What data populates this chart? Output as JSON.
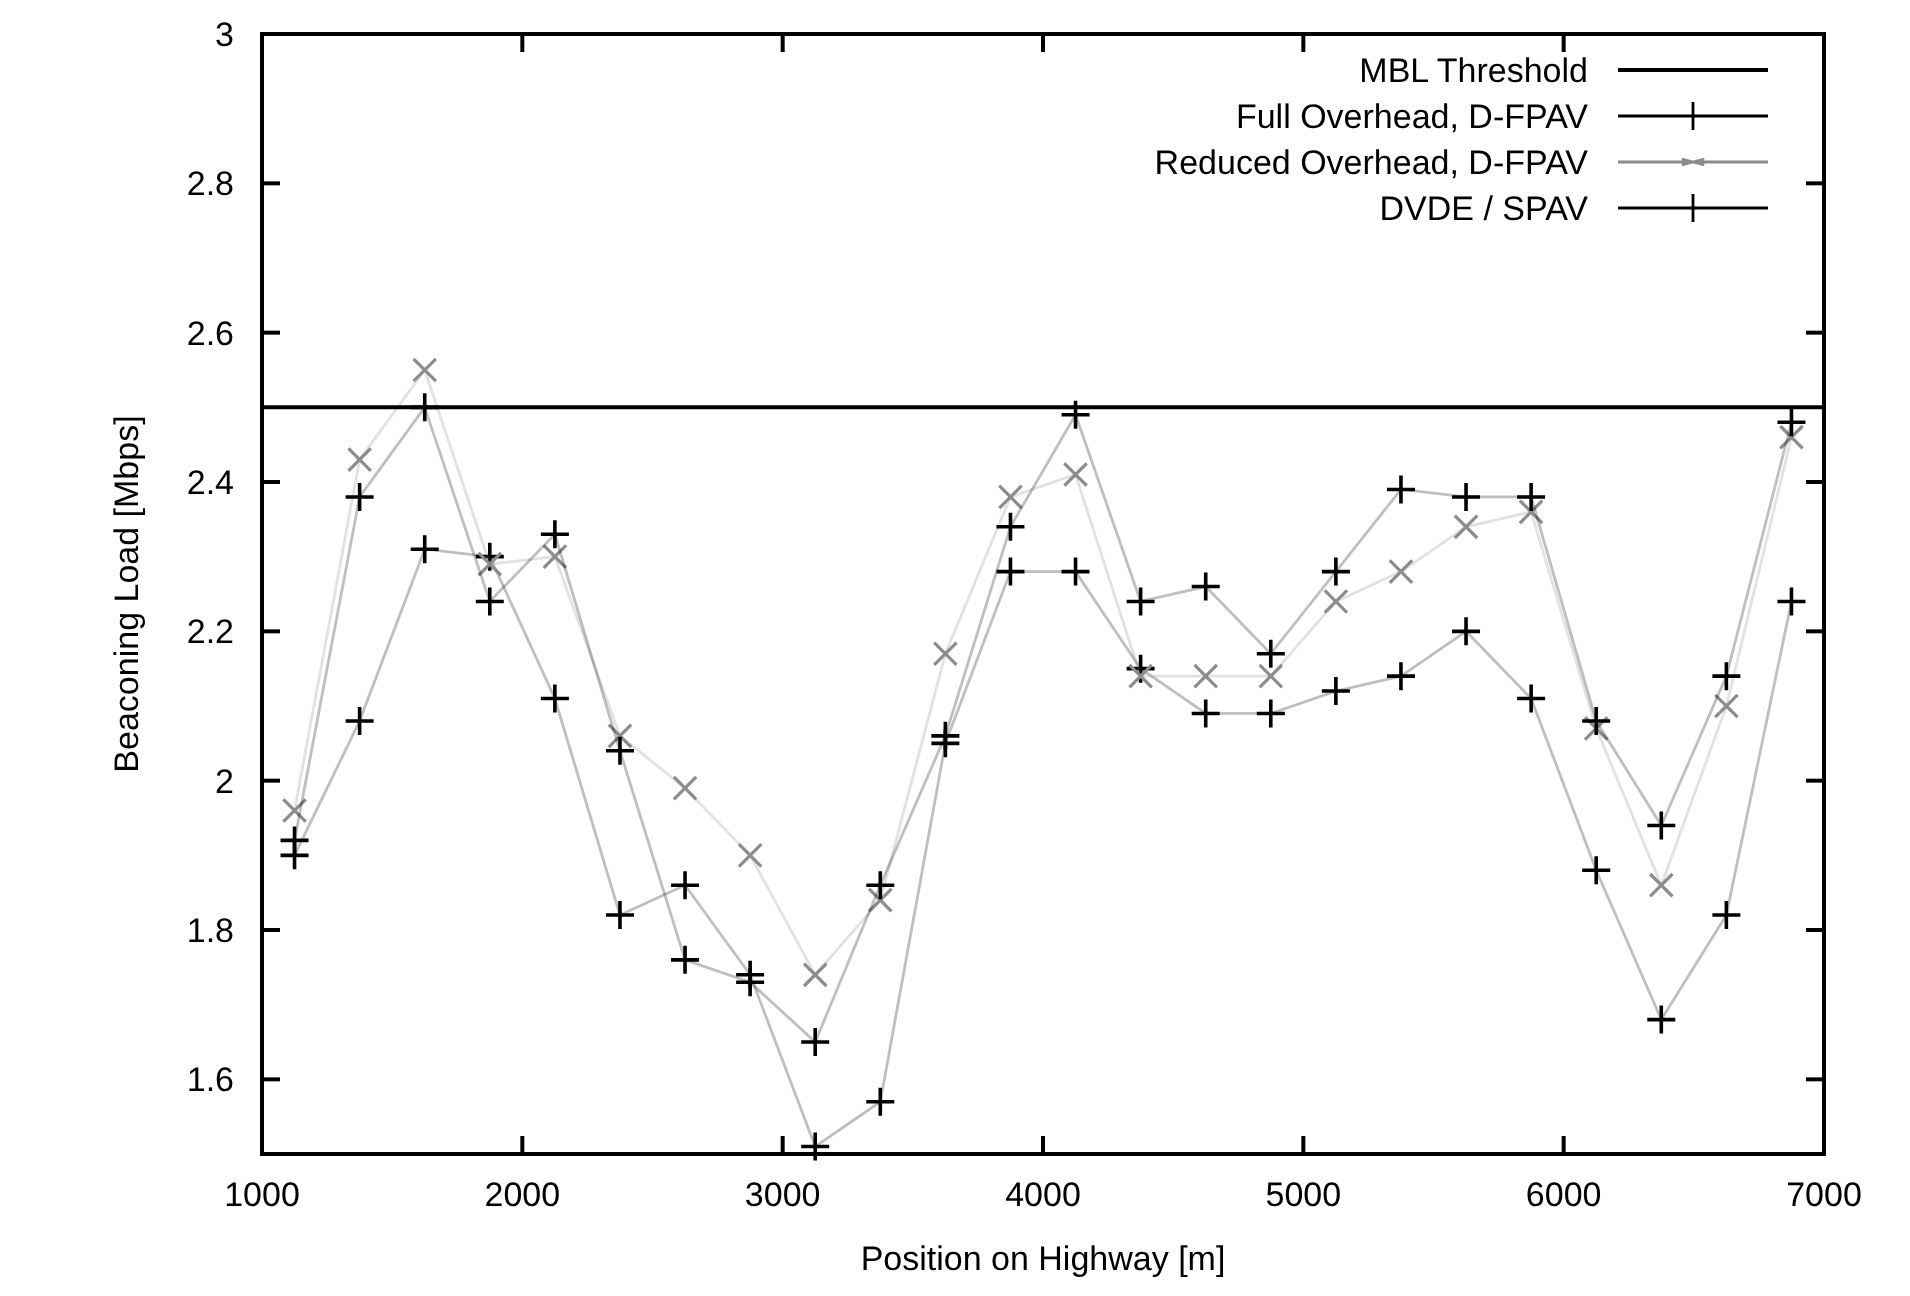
{
  "chart_data": {
    "type": "line",
    "xlabel": "Position on Highway [m]",
    "ylabel": "Beaconing Load [Mbps]",
    "x": [
      1125,
      1375,
      1625,
      1875,
      2125,
      2375,
      2625,
      2875,
      3125,
      3375,
      3625,
      3875,
      4125,
      4375,
      4625,
      4875,
      5125,
      5375,
      5625,
      5875,
      6125,
      6375,
      6625,
      6875
    ],
    "series": [
      {
        "name": "Full Overhead, D-FPAV",
        "color": "#000000",
        "marker": "cross",
        "values": [
          1.9,
          2.08,
          2.31,
          2.3,
          2.11,
          1.82,
          1.86,
          1.74,
          1.51,
          1.57,
          2.05,
          2.28,
          2.28,
          2.15,
          2.09,
          2.09,
          2.12,
          2.14,
          2.2,
          2.11,
          1.88,
          1.68,
          1.82,
          2.24
        ]
      },
      {
        "name": "Reduced Overhead, D-FPAV",
        "color": "#8c8c8c",
        "marker": "x",
        "values": [
          1.96,
          2.43,
          2.55,
          2.29,
          2.3,
          2.06,
          1.99,
          1.9,
          1.74,
          1.84,
          2.17,
          2.38,
          2.41,
          2.14,
          2.14,
          2.14,
          2.24,
          2.28,
          2.34,
          2.36,
          2.07,
          1.86,
          2.1,
          2.46
        ]
      },
      {
        "name": "DVDE / SPAV",
        "color": "#000000",
        "marker": "cross",
        "values": [
          1.92,
          2.38,
          2.5,
          2.24,
          2.33,
          2.04,
          1.76,
          1.73,
          1.65,
          1.86,
          2.06,
          2.34,
          2.49,
          2.24,
          2.26,
          2.17,
          2.28,
          2.39,
          2.38,
          2.38,
          2.08,
          1.94,
          2.14,
          2.48
        ]
      }
    ],
    "xlim": [
      1000,
      7000
    ],
    "xticks": [
      1000,
      2000,
      3000,
      4000,
      5000,
      6000,
      7000
    ],
    "ylim": [
      1.5,
      3
    ],
    "yticks": [
      1.6,
      1.8,
      2,
      2.2,
      2.4,
      2.6,
      2.8,
      3
    ],
    "ref_lines": [
      {
        "axis": "y",
        "value": 2.5,
        "label": "MBL Threshold",
        "color": "#000000",
        "line_style": "solid"
      }
    ],
    "legend": "top right",
    "grid": false
  }
}
